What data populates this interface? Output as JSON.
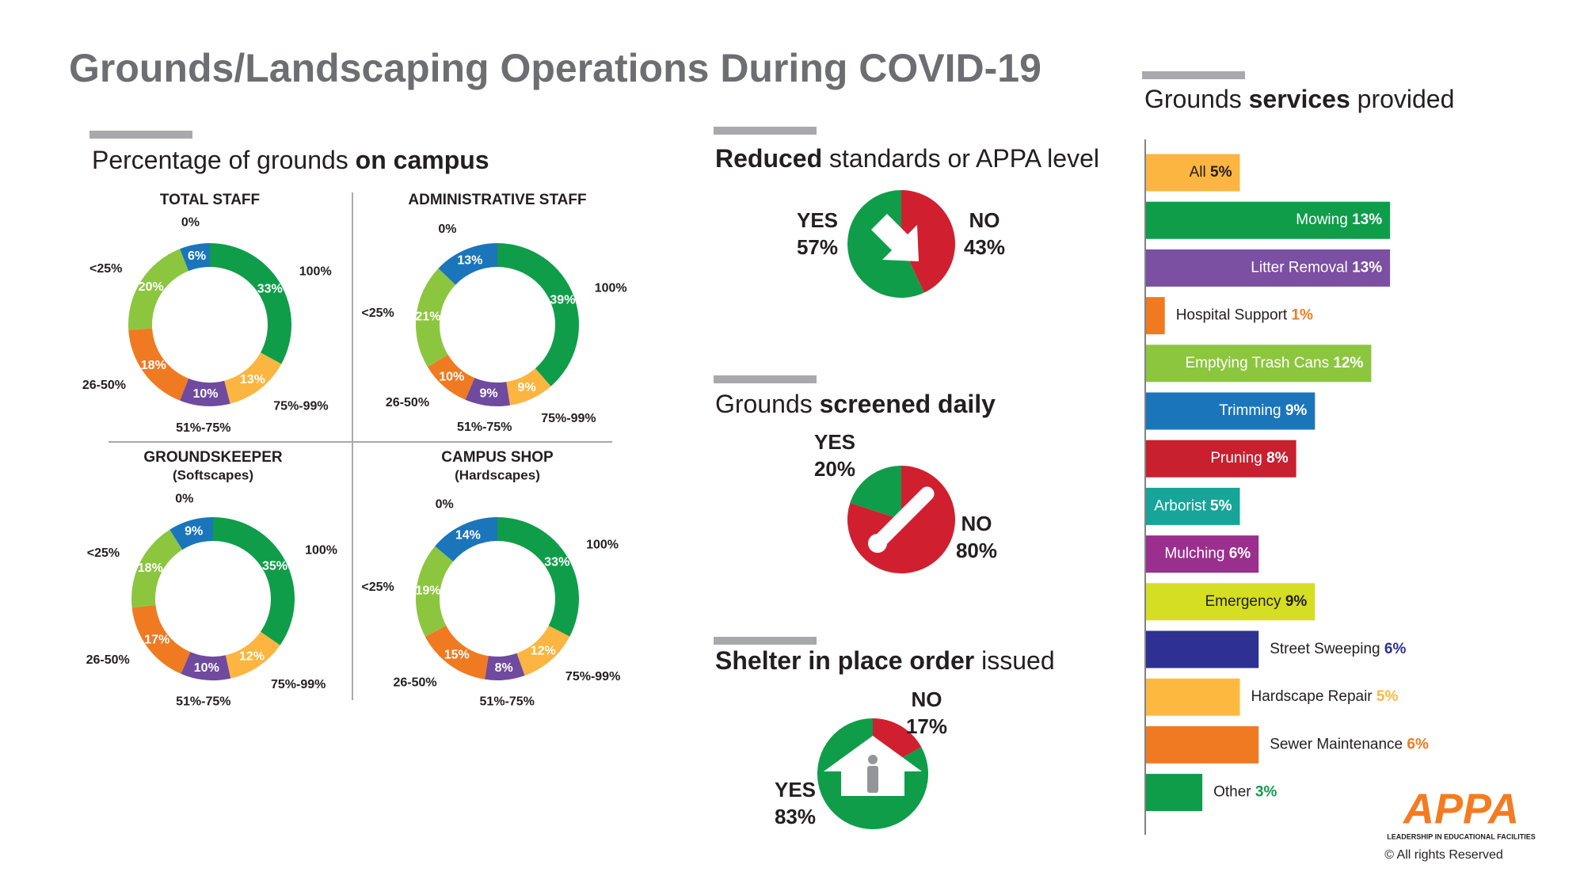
{
  "title": "Grounds/Landscaping Operations During COVID-19",
  "campus_heading": [
    {
      "text": "Percentage of grounds"
    },
    {
      "text": "on campus",
      "bold": true
    }
  ],
  "chart_data": [
    {
      "type": "donut",
      "title": "TOTAL STAFF",
      "categories": [
        "100%",
        "75%-99%",
        "51%-75%",
        "26-50%",
        "<25%",
        "0%"
      ],
      "values": [
        33,
        13,
        10,
        18,
        20,
        6
      ],
      "value_labels": [
        "33%",
        "13%",
        "10%",
        "18%",
        "20%",
        "6%"
      ],
      "colors": [
        "#0f9d4a",
        "#fbb540",
        "#6f4a9e",
        "#f07a22",
        "#8cc63f",
        "#1b75bb"
      ]
    },
    {
      "type": "donut",
      "title": "ADMINISTRATIVE STAFF",
      "categories": [
        "100%",
        "75%-99%",
        "51%-75%",
        "26-50%",
        "<25%",
        "0%"
      ],
      "values": [
        39,
        9,
        9,
        10,
        21,
        13
      ],
      "value_labels": [
        "39%",
        "9%",
        "9%",
        "10%",
        "21%",
        "13%"
      ],
      "colors": [
        "#0f9d4a",
        "#fbb540",
        "#6f4a9e",
        "#f07a22",
        "#8cc63f",
        "#1b75bb"
      ]
    },
    {
      "type": "donut",
      "title": "GROUNDSKEEPER",
      "subtitle": "(Softscapes)",
      "categories": [
        "100%",
        "75%-99%",
        "51%-75%",
        "26-50%",
        "<25%",
        "0%"
      ],
      "values": [
        35,
        12,
        10,
        17,
        18,
        9
      ],
      "value_labels": [
        "35%",
        "12%",
        "10%",
        "17%",
        "18%",
        "9%"
      ],
      "colors": [
        "#0f9d4a",
        "#fbb540",
        "#6f4a9e",
        "#f07a22",
        "#8cc63f",
        "#1b75bb"
      ]
    },
    {
      "type": "donut",
      "title": "CAMPUS SHOP",
      "subtitle": "(Hardscapes)",
      "categories": [
        "100%",
        "75%-99%",
        "51%-75%",
        "26-50%",
        "<25%",
        "0%"
      ],
      "values": [
        33,
        12,
        8,
        15,
        19,
        14
      ],
      "value_labels": [
        "33%",
        "12%",
        "8%",
        "15%",
        "19%",
        "14%"
      ],
      "colors": [
        "#0f9d4a",
        "#fbb540",
        "#6f4a9e",
        "#f07a22",
        "#8cc63f",
        "#1b75bb"
      ]
    },
    {
      "type": "pie",
      "title_parts": [
        {
          "text": "Reduced",
          "bold": true
        },
        {
          "text": "standards or APPA level"
        }
      ],
      "categories": [
        "YES",
        "NO"
      ],
      "values": [
        57,
        43
      ],
      "value_labels": [
        "57%",
        "43%"
      ],
      "colors": [
        "#0f9d4a",
        "#d0202f"
      ],
      "icon": "arrow"
    },
    {
      "type": "pie",
      "title_parts": [
        {
          "text": "Grounds"
        },
        {
          "text": "screened daily",
          "bold": true
        }
      ],
      "categories": [
        "YES",
        "NO"
      ],
      "values": [
        20,
        80
      ],
      "value_labels": [
        "20%",
        "80%"
      ],
      "colors": [
        "#0f9d4a",
        "#d0202f"
      ],
      "icon": "thermometer"
    },
    {
      "type": "pie",
      "title_parts": [
        {
          "text": "Shelter in place order",
          "bold": true
        },
        {
          "text": "issued"
        }
      ],
      "categories": [
        "YES",
        "NO"
      ],
      "values": [
        83,
        17
      ],
      "value_labels": [
        "83%",
        "17%"
      ],
      "colors": [
        "#0f9d4a",
        "#d0202f"
      ],
      "icon": "house"
    },
    {
      "type": "bar",
      "orientation": "horizontal",
      "title_parts": [
        {
          "text": "Grounds"
        },
        {
          "text": "services",
          "bold": true
        },
        {
          "text": "provided"
        }
      ],
      "categories": [
        "All",
        "Mowing",
        "Litter Removal",
        "Hospital Support",
        "Emptying Trash Cans",
        "Trimming",
        "Pruning",
        "Arborist",
        "Mulching",
        "Emergency",
        "Street Sweeping",
        "Hardscape Repair",
        "Sewer Maintenance",
        "Other"
      ],
      "values": [
        5,
        13,
        13,
        1,
        12,
        9,
        8,
        5,
        6,
        9,
        6,
        5,
        6,
        3
      ],
      "value_labels": [
        "5%",
        "13%",
        "13%",
        "1%",
        "12%",
        "9%",
        "8%",
        "5%",
        "6%",
        "9%",
        "6%",
        "5%",
        "6%",
        "3%"
      ],
      "colors": [
        "#fbb540",
        "#0f9d4a",
        "#7b4fa2",
        "#f07a22",
        "#8cc63f",
        "#1b75bb",
        "#c8202f",
        "#17a59a",
        "#9b2f8e",
        "#d6de23",
        "#2e3192",
        "#fdb93f",
        "#f07a22",
        "#0f9d4a"
      ]
    }
  ],
  "footer": {
    "logo": "APPA",
    "tagline": "LEADERSHIP IN EDUCATIONAL FACILITIES",
    "copyright": "© All rights Reserved"
  }
}
